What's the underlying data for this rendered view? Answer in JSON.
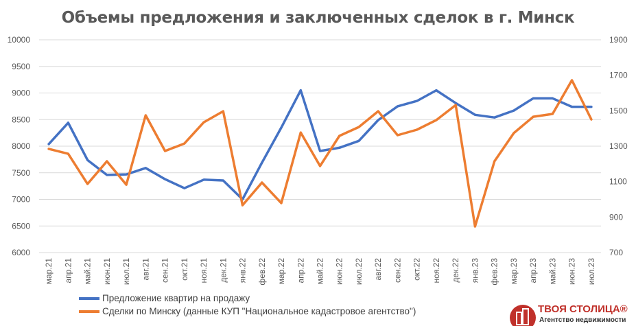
{
  "chart_data": {
    "type": "line",
    "title": "Объемы предложения и заключенных сделок в г. Минск",
    "categories": [
      "мар.21",
      "апр.21",
      "май.21",
      "июн.21",
      "июл.21",
      "авг.21",
      "сен.21",
      "окт.21",
      "ноя.21",
      "дек.21",
      "янв.22",
      "фев.22",
      "мар.22",
      "апр.22",
      "май.22",
      "июн.22",
      "июл.22",
      "авг.22",
      "сен.22",
      "окт.22",
      "ноя.22",
      "дек.22",
      "янв.23",
      "фев.23",
      "мар.23",
      "апр.23",
      "май.23",
      "июн.23",
      "июл.23"
    ],
    "y_left": {
      "min": 6000,
      "max": 10000,
      "ticks": [
        "6000",
        "6500",
        "7000",
        "7500",
        "8000",
        "8500",
        "9000",
        "9500",
        "10000"
      ]
    },
    "y_right": {
      "min": 700,
      "max": 1900,
      "ticks": [
        "700",
        "900",
        "1100",
        "1300",
        "1500",
        "1700",
        "1900"
      ]
    },
    "grid": true,
    "legend_position": "bottom-left",
    "series": [
      {
        "name": "Предложение квартир на продажу",
        "axis": "left",
        "color": "#4472c4",
        "values": [
          8040,
          8440,
          7740,
          7460,
          7470,
          7590,
          7380,
          7210,
          7370,
          7355,
          7000,
          7690,
          8350,
          9050,
          7910,
          7970,
          8100,
          8490,
          8750,
          8850,
          9050,
          8810,
          8590,
          8540,
          8670,
          8900,
          8900,
          8740,
          8740
        ]
      },
      {
        "name": "Сделки по Минску (данные КУП \"Национальное кадастровое агентство\")",
        "axis": "right",
        "color": "#ed7d31",
        "values": [
          1285,
          1257,
          1087,
          1215,
          1083,
          1474,
          1273,
          1315,
          1435,
          1497,
          967,
          1095,
          979,
          1377,
          1188,
          1358,
          1408,
          1497,
          1362,
          1393,
          1447,
          1532,
          847,
          1215,
          1374,
          1466,
          1482,
          1672,
          1451
        ]
      }
    ]
  },
  "logo": {
    "brand": "ТВОЯ СТОЛИЦА®",
    "subtitle": "Агентство недвижимости"
  }
}
